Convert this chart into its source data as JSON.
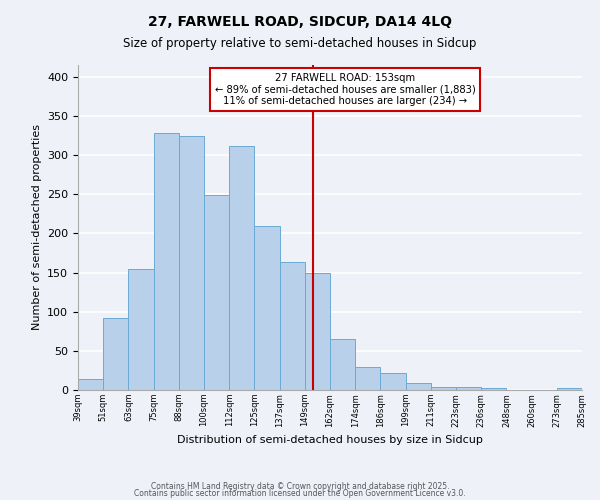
{
  "title": "27, FARWELL ROAD, SIDCUP, DA14 4LQ",
  "subtitle": "Size of property relative to semi-detached houses in Sidcup",
  "xlabel": "Distribution of semi-detached houses by size in Sidcup",
  "ylabel": "Number of semi-detached properties",
  "tick_labels": [
    "39sqm",
    "51sqm",
    "63sqm",
    "75sqm",
    "88sqm",
    "100sqm",
    "112sqm",
    "125sqm",
    "137sqm",
    "149sqm",
    "162sqm",
    "174sqm",
    "186sqm",
    "199sqm",
    "211sqm",
    "223sqm",
    "236sqm",
    "248sqm",
    "260sqm",
    "273sqm",
    "285sqm"
  ],
  "bar_values": [
    14,
    92,
    155,
    328,
    324,
    249,
    311,
    210,
    163,
    150,
    65,
    30,
    22,
    9,
    4,
    4,
    2,
    0,
    0,
    3
  ],
  "bar_color": "#b8d0ea",
  "bar_edge_color": "#6aaad4",
  "bg_color": "#eef2f8",
  "grid_color": "#ffffff",
  "ylim": [
    0,
    415
  ],
  "yticks": [
    0,
    50,
    100,
    150,
    200,
    250,
    300,
    350,
    400
  ],
  "annotation_title": "27 FARWELL ROAD: 153sqm",
  "annotation_line1": "← 89% of semi-detached houses are smaller (1,883)",
  "annotation_line2": "11% of semi-detached houses are larger (234) →",
  "annotation_box_color": "#ffffff",
  "annotation_border_color": "#cc0000",
  "vline_color": "#cc0000",
  "footer1": "Contains HM Land Registry data © Crown copyright and database right 2025.",
  "footer2": "Contains public sector information licensed under the Open Government Licence v3.0.",
  "n_bars": 20,
  "vline_bin_index": 9,
  "title_fontsize": 10,
  "subtitle_fontsize": 8.5
}
